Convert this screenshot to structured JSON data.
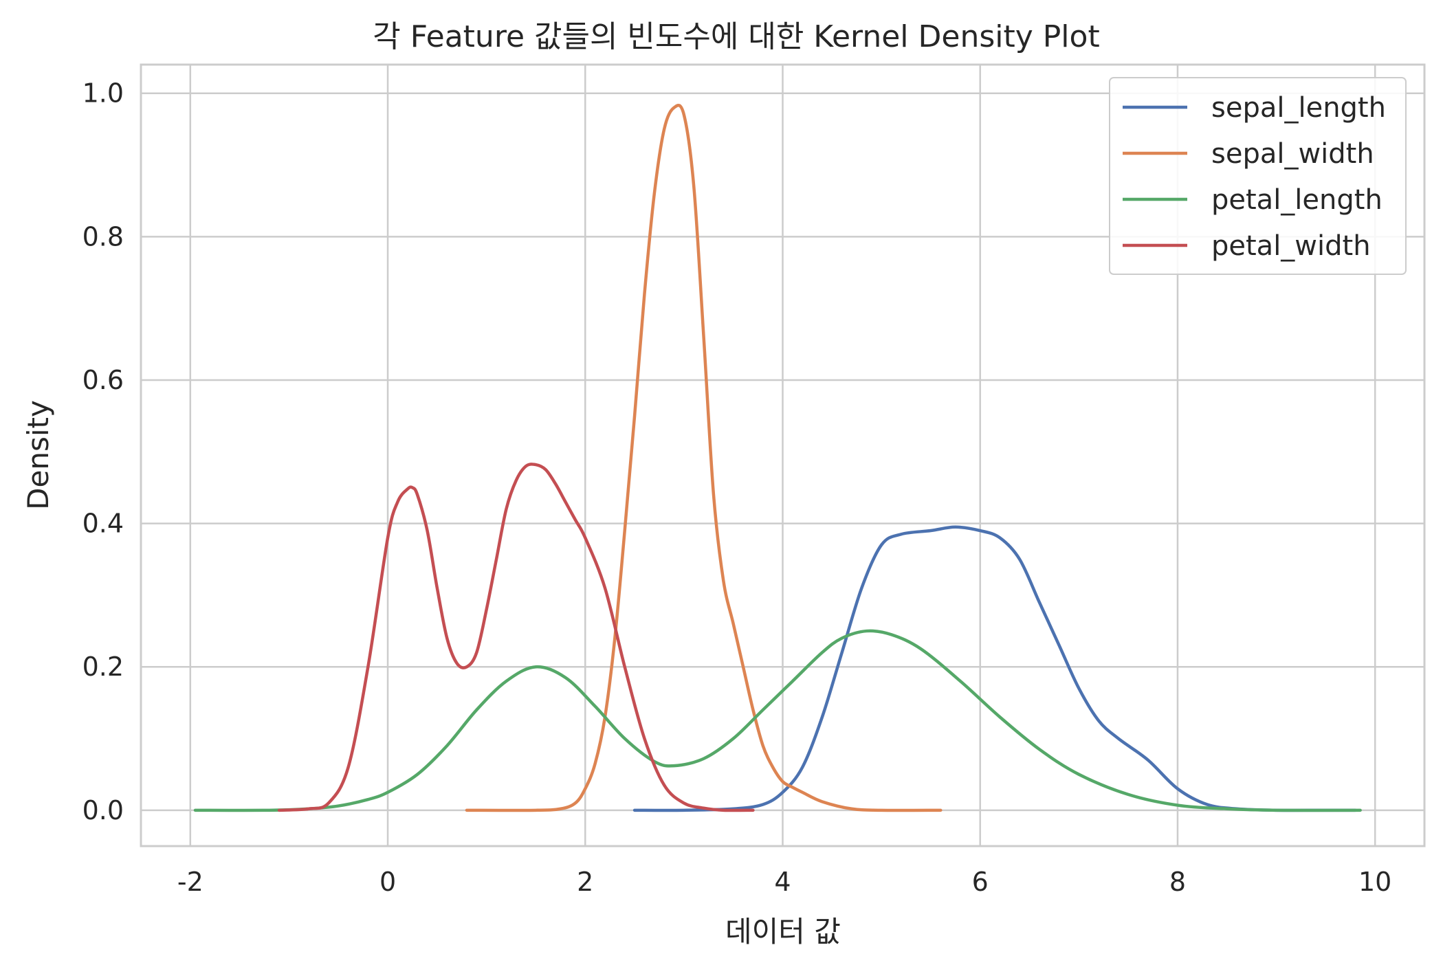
{
  "chart_data": {
    "type": "line",
    "title": "각 Feature 값들의 빈도수에 대한 Kernel Density Plot",
    "xlabel": "데이터 값",
    "ylabel": "Density",
    "xlim": [
      -2.5,
      10.5
    ],
    "ylim": [
      -0.05,
      1.04
    ],
    "xticks": [
      -2,
      0,
      2,
      4,
      6,
      8,
      10
    ],
    "xtick_labels": [
      "-2",
      "0",
      "2",
      "4",
      "6",
      "8",
      "10"
    ],
    "yticks": [
      0.0,
      0.2,
      0.4,
      0.6,
      0.8,
      1.0
    ],
    "ytick_labels": [
      "0.0",
      "0.2",
      "0.4",
      "0.6",
      "0.8",
      "1.0"
    ],
    "grid": true,
    "legend_position": "top-right",
    "series": [
      {
        "name": "sepal_length",
        "color": "#4c72b0",
        "x": [
          2.5,
          3.0,
          3.5,
          3.8,
          4.0,
          4.2,
          4.4,
          4.6,
          4.8,
          5.0,
          5.2,
          5.5,
          5.75,
          6.0,
          6.2,
          6.4,
          6.6,
          6.8,
          7.0,
          7.2,
          7.4,
          7.7,
          8.0,
          8.3,
          8.6,
          9.0,
          9.5,
          9.8
        ],
        "y": [
          0.0,
          0.0,
          0.002,
          0.008,
          0.025,
          0.06,
          0.13,
          0.22,
          0.31,
          0.37,
          0.385,
          0.39,
          0.395,
          0.39,
          0.38,
          0.35,
          0.29,
          0.23,
          0.17,
          0.125,
          0.1,
          0.07,
          0.03,
          0.008,
          0.002,
          0.0,
          0.0,
          0.0
        ]
      },
      {
        "name": "sepal_width",
        "color": "#dd8452",
        "x": [
          0.8,
          1.5,
          1.75,
          1.9,
          2.0,
          2.1,
          2.2,
          2.3,
          2.4,
          2.5,
          2.6,
          2.7,
          2.8,
          2.9,
          3.0,
          3.1,
          3.2,
          3.3,
          3.4,
          3.5,
          3.6,
          3.7,
          3.8,
          3.9,
          4.0,
          4.1,
          4.2,
          4.4,
          4.7,
          5.0,
          5.6
        ],
        "y": [
          0.0,
          0.0,
          0.002,
          0.01,
          0.03,
          0.065,
          0.13,
          0.24,
          0.39,
          0.55,
          0.72,
          0.86,
          0.95,
          0.98,
          0.97,
          0.87,
          0.66,
          0.44,
          0.32,
          0.26,
          0.2,
          0.14,
          0.09,
          0.06,
          0.04,
          0.032,
          0.025,
          0.012,
          0.002,
          0.0,
          0.0
        ]
      },
      {
        "name": "petal_length",
        "color": "#55a868",
        "x": [
          -1.95,
          -1.2,
          -0.8,
          -0.5,
          -0.2,
          0.0,
          0.3,
          0.6,
          0.9,
          1.2,
          1.5,
          1.8,
          2.1,
          2.4,
          2.7,
          2.9,
          3.2,
          3.5,
          3.8,
          4.1,
          4.4,
          4.6,
          4.85,
          5.1,
          5.4,
          5.8,
          6.2,
          6.6,
          7.0,
          7.5,
          8.0,
          8.5,
          9.0,
          9.85
        ],
        "y": [
          0.0,
          0.0,
          0.002,
          0.006,
          0.015,
          0.025,
          0.05,
          0.09,
          0.14,
          0.18,
          0.2,
          0.185,
          0.145,
          0.1,
          0.068,
          0.062,
          0.072,
          0.1,
          0.14,
          0.18,
          0.22,
          0.24,
          0.25,
          0.245,
          0.225,
          0.18,
          0.13,
          0.085,
          0.05,
          0.022,
          0.007,
          0.002,
          0.0,
          0.0
        ]
      },
      {
        "name": "petal_width",
        "color": "#c44e52",
        "x": [
          -1.1,
          -0.8,
          -0.6,
          -0.4,
          -0.2,
          0.0,
          0.1,
          0.2,
          0.25,
          0.3,
          0.4,
          0.5,
          0.6,
          0.7,
          0.8,
          0.9,
          1.0,
          1.1,
          1.2,
          1.3,
          1.4,
          1.5,
          1.6,
          1.7,
          1.8,
          1.9,
          2.0,
          2.2,
          2.4,
          2.6,
          2.8,
          3.0,
          3.2,
          3.4,
          3.7
        ],
        "y": [
          0.0,
          0.002,
          0.01,
          0.06,
          0.2,
          0.38,
          0.43,
          0.448,
          0.45,
          0.44,
          0.39,
          0.31,
          0.24,
          0.205,
          0.2,
          0.22,
          0.28,
          0.35,
          0.42,
          0.46,
          0.48,
          0.482,
          0.475,
          0.455,
          0.43,
          0.405,
          0.38,
          0.31,
          0.2,
          0.1,
          0.035,
          0.01,
          0.003,
          0.0,
          0.0
        ]
      }
    ]
  }
}
